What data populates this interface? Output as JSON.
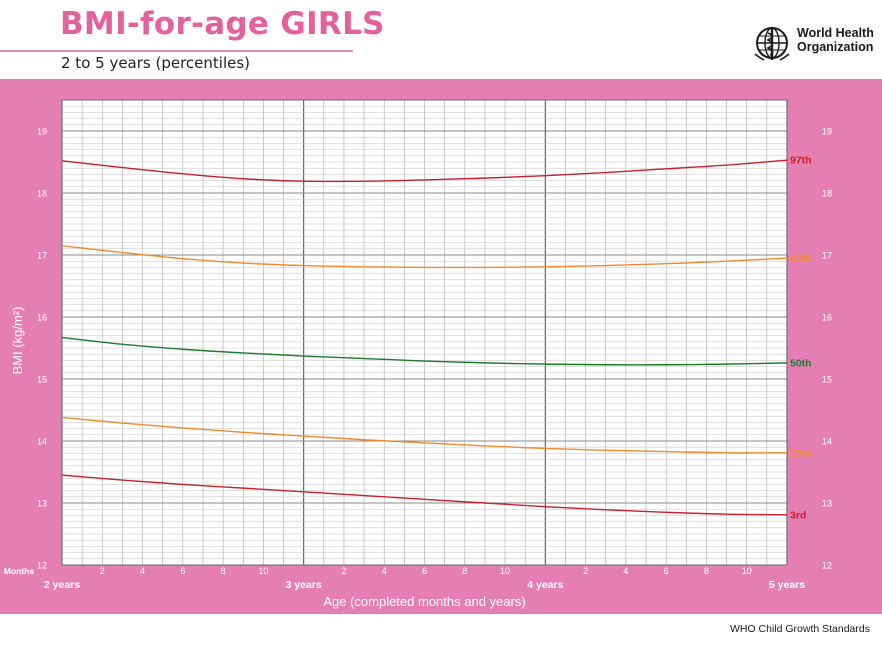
{
  "header": {
    "title": "BMI-for-age GIRLS",
    "subtitle": "2 to 5 years (percentiles)",
    "logo_line1": "World Health",
    "logo_line2": "Organization",
    "logo_icon": "who-emblem-icon"
  },
  "footer": {
    "text": "WHO Child Growth Standards"
  },
  "colors": {
    "band": "#e57fb3",
    "title": "#e5619c",
    "p97": "#c8202f",
    "p85": "#f08a2e",
    "p50": "#1e7a2e",
    "p15": "#f08a2e",
    "p3": "#c8202f"
  },
  "chart_data": {
    "type": "line",
    "xlabel": "Age (completed months and years)",
    "ylabel": "BMI (kg/m²)",
    "x_unit_label": "Months",
    "xlim": [
      24,
      60
    ],
    "ylim": [
      12,
      19.5
    ],
    "y_ticks": [
      12,
      13,
      14,
      15,
      16,
      17,
      18,
      19
    ],
    "x_ticks": [
      {
        "x": 24,
        "label": "2 years",
        "major": true
      },
      {
        "x": 26,
        "label": "2"
      },
      {
        "x": 28,
        "label": "4"
      },
      {
        "x": 30,
        "label": "6"
      },
      {
        "x": 32,
        "label": "8"
      },
      {
        "x": 34,
        "label": "10"
      },
      {
        "x": 36,
        "label": "3 years",
        "major": true
      },
      {
        "x": 38,
        "label": "2"
      },
      {
        "x": 40,
        "label": "4"
      },
      {
        "x": 42,
        "label": "6"
      },
      {
        "x": 44,
        "label": "8"
      },
      {
        "x": 46,
        "label": "10"
      },
      {
        "x": 48,
        "label": "4 years",
        "major": true
      },
      {
        "x": 50,
        "label": "2"
      },
      {
        "x": 52,
        "label": "4"
      },
      {
        "x": 54,
        "label": "6"
      },
      {
        "x": 56,
        "label": "8"
      },
      {
        "x": 58,
        "label": "10"
      },
      {
        "x": 60,
        "label": "5 years",
        "major": true
      }
    ],
    "grid": true,
    "x": [
      24,
      27,
      30,
      33,
      36,
      39,
      42,
      45,
      48,
      51,
      54,
      57,
      60
    ],
    "series": [
      {
        "name": "97th",
        "color": "#c8202f",
        "values": [
          18.52,
          18.41,
          18.31,
          18.23,
          18.19,
          18.19,
          18.21,
          18.24,
          18.28,
          18.33,
          18.39,
          18.45,
          18.53
        ]
      },
      {
        "name": "85th",
        "color": "#f08a2e",
        "values": [
          17.15,
          17.04,
          16.94,
          16.87,
          16.83,
          16.81,
          16.8,
          16.8,
          16.81,
          16.83,
          16.86,
          16.9,
          16.95
        ]
      },
      {
        "name": "50th",
        "color": "#1e7a2e",
        "values": [
          15.67,
          15.56,
          15.48,
          15.42,
          15.37,
          15.33,
          15.29,
          15.26,
          15.24,
          15.23,
          15.23,
          15.24,
          15.26
        ]
      },
      {
        "name": "15th",
        "color": "#f08a2e",
        "values": [
          14.38,
          14.29,
          14.21,
          14.14,
          14.08,
          14.02,
          13.97,
          13.92,
          13.88,
          13.85,
          13.83,
          13.81,
          13.81
        ]
      },
      {
        "name": "3rd",
        "color": "#c8202f",
        "values": [
          13.45,
          13.37,
          13.3,
          13.24,
          13.18,
          13.12,
          13.06,
          13.0,
          12.94,
          12.89,
          12.85,
          12.82,
          12.81
        ]
      }
    ]
  }
}
